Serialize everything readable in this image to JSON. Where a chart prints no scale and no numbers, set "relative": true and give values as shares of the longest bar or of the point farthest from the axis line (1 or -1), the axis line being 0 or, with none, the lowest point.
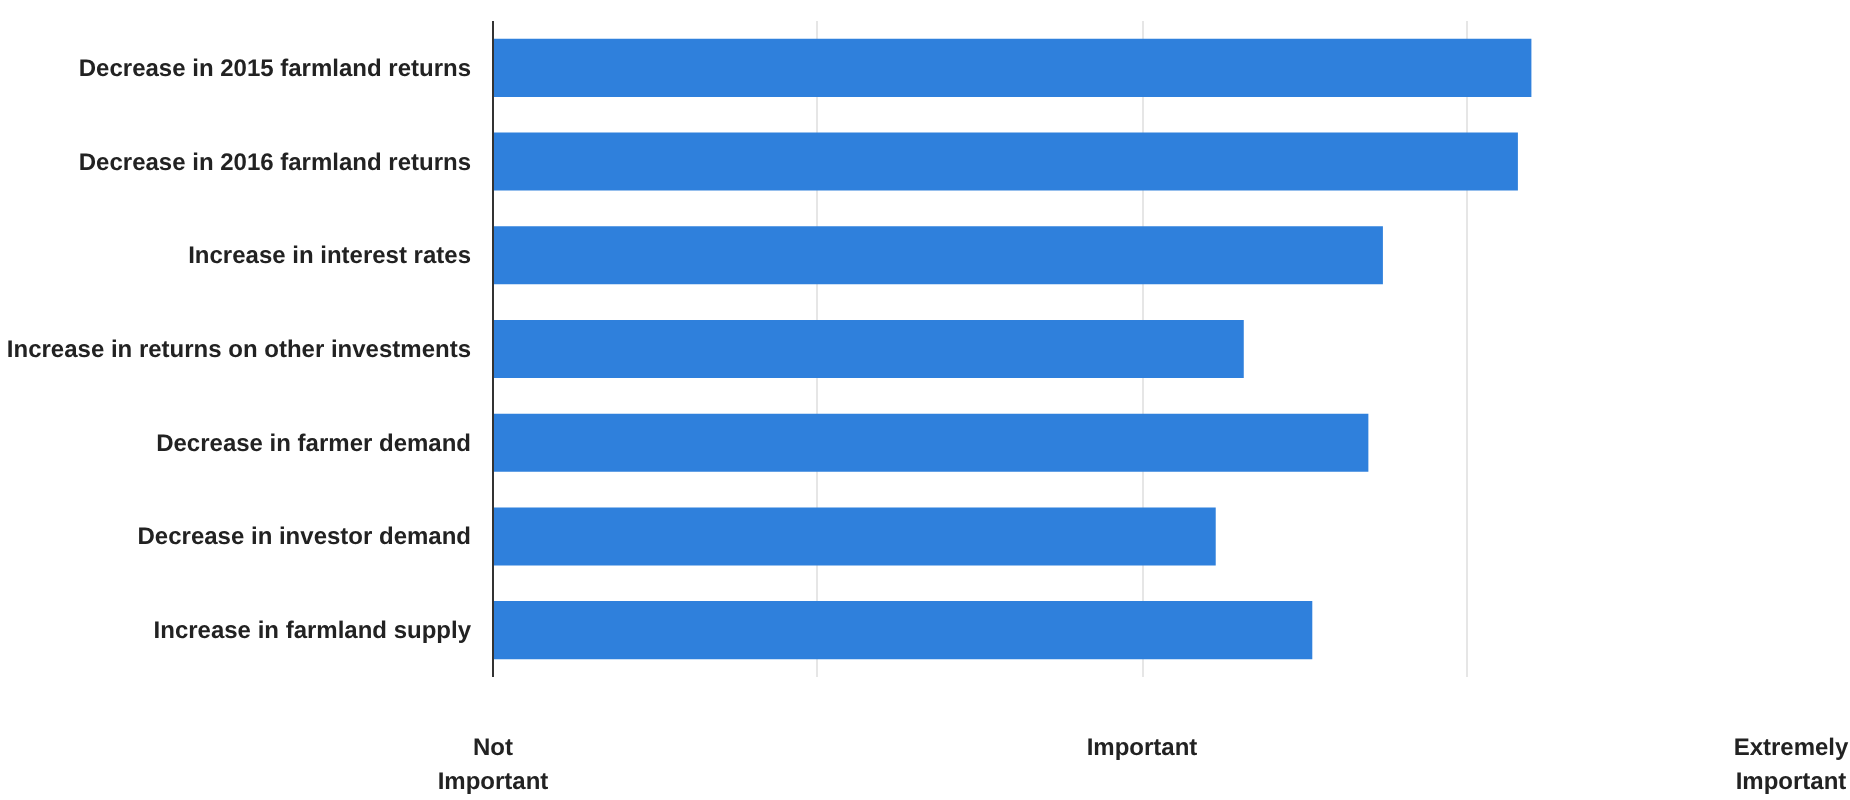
{
  "chart_data": {
    "type": "bar",
    "orientation": "horizontal",
    "relative": true,
    "categories": [
      "Decrease in 2015 farmland returns",
      "Decrease in 2016 farmland returns",
      "Increase in interest rates",
      "Increase in returns on other investments",
      "Decrease in farmer demand",
      "Decrease in investor demand",
      "Increase in farmland supply"
    ],
    "values": [
      1,
      0.987,
      0.857,
      0.723,
      0.843,
      0.696,
      0.789
    ],
    "color": "#2f80dc",
    "annotations": [
      "Not Important",
      "Important",
      "Extremely Important"
    ],
    "grid": "x"
  }
}
